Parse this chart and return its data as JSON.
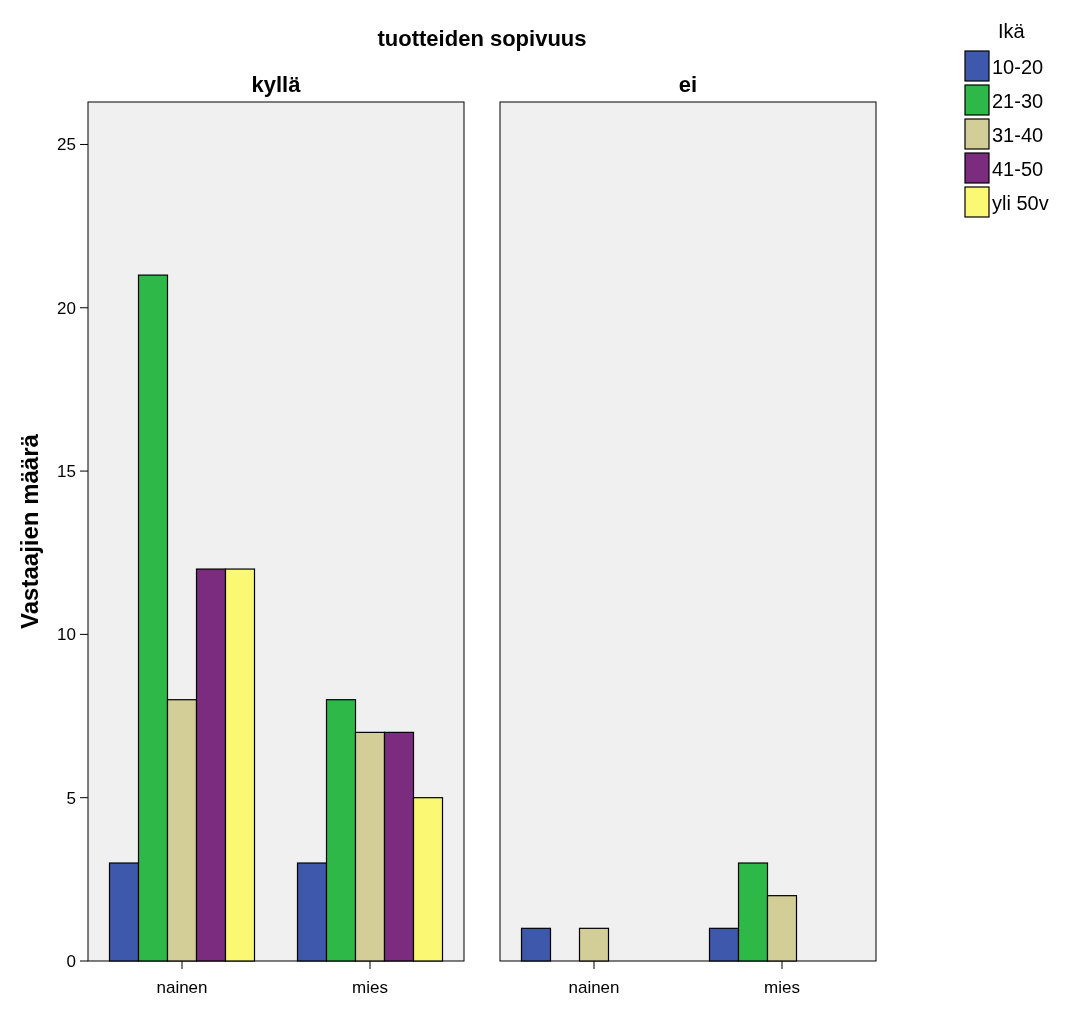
{
  "chart_data": [
    {
      "type": "bar",
      "title": "kyllä",
      "annotations": [
        "tuotteiden sopivuus"
      ],
      "ylabel": "Vastaajien määrä",
      "legend_title": "Ikä",
      "legend": "top right",
      "grid": false,
      "categories": [
        "nainen",
        "mies"
      ],
      "ylim": [
        0,
        26.3
      ],
      "yticks": [
        0,
        5,
        10,
        15,
        20,
        25
      ],
      "series": [
        {
          "name": "10-20",
          "color": "#3e58ac",
          "values": [
            3,
            3
          ]
        },
        {
          "name": "21-30",
          "color": "#2eb848",
          "values": [
            21,
            8
          ]
        },
        {
          "name": "31-40",
          "color": "#d3ce97",
          "values": [
            8,
            7
          ]
        },
        {
          "name": "41-50",
          "color": "#7b2c7e",
          "values": [
            12,
            7
          ]
        },
        {
          "name": "yli 50v",
          "color": "#fbf873",
          "values": [
            12,
            5
          ]
        }
      ]
    },
    {
      "type": "bar",
      "title": "ei",
      "grid": false,
      "tick_labels": "x",
      "categories": [
        "nainen",
        "mies"
      ],
      "ylim": [
        0,
        26.3
      ],
      "yticks": [
        0,
        5,
        10,
        15,
        20,
        25
      ],
      "series": [
        {
          "color": "#3e58ac",
          "values": [
            1,
            1
          ]
        },
        {
          "color": "#2eb848",
          "values": [
            null,
            3
          ]
        },
        {
          "color": "#d3ce97",
          "values": [
            1,
            2
          ]
        },
        {
          "values": [
            null,
            null
          ]
        },
        {
          "values": [
            null,
            null
          ]
        }
      ]
    }
  ]
}
